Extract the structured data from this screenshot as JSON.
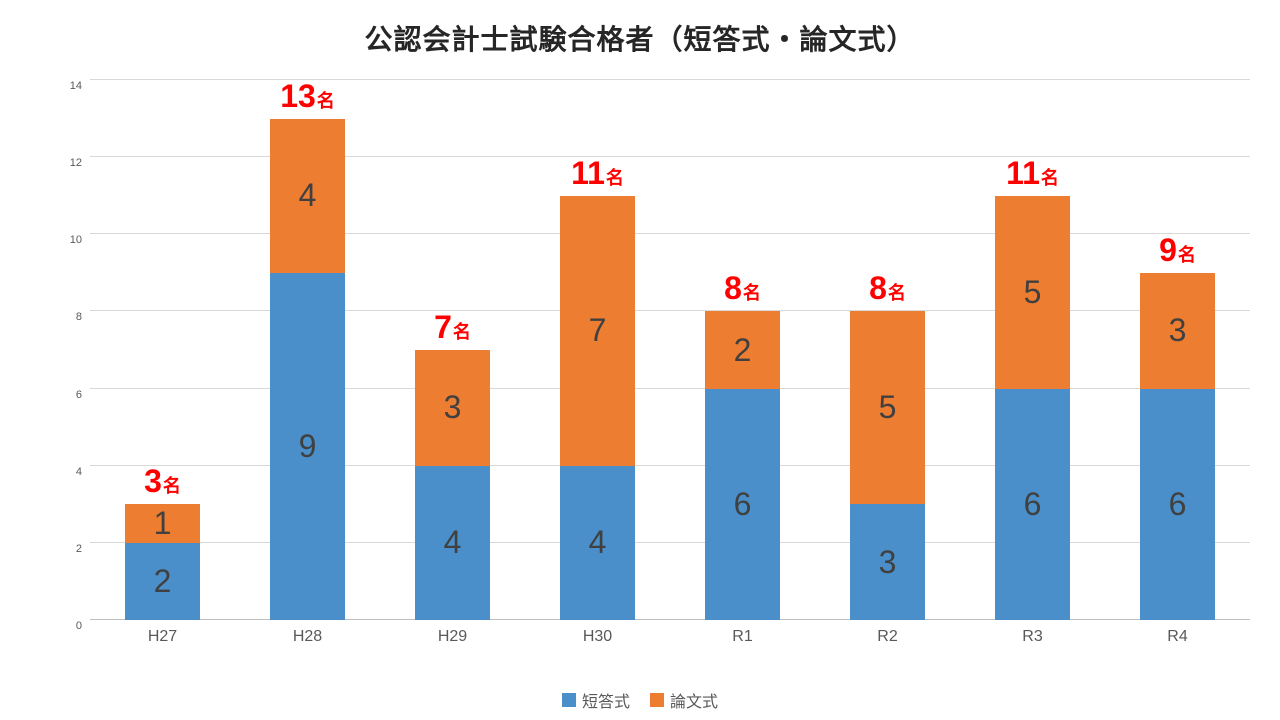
{
  "title": "公認会計士試験合格者（短答式・論文式）",
  "chart": {
    "type": "stacked-bar",
    "background_color": "#ffffff",
    "grid_color": "#d9d9d9",
    "axis_color": "#bfbfbf",
    "tick_font_size": 11,
    "tick_color": "#595959",
    "title_font_size": 28,
    "title_color": "#262626",
    "ylim": [
      0,
      14
    ],
    "ytick_step": 2,
    "yticks": [
      0,
      2,
      4,
      6,
      8,
      10,
      12,
      14
    ],
    "bar_width_ratio": 0.52,
    "categories": [
      "H27",
      "H28",
      "H29",
      "H30",
      "R1",
      "R2",
      "R3",
      "R4"
    ],
    "series": [
      {
        "name": "短答式",
        "color": "#4a8fc9",
        "values": [
          2,
          9,
          4,
          4,
          6,
          3,
          6,
          6
        ]
      },
      {
        "name": "論文式",
        "color": "#ed7d31",
        "values": [
          1,
          4,
          3,
          7,
          2,
          5,
          5,
          3
        ]
      }
    ],
    "totals": [
      3,
      13,
      7,
      11,
      8,
      8,
      11,
      9
    ],
    "total_suffix": "名",
    "total_label_color": "#ff0000",
    "total_label_fontsize_num": 32,
    "total_label_fontsize_suffix": 18,
    "segment_label_color": "#404040",
    "segment_label_fontsize": 32,
    "xlabel_fontsize": 16,
    "xlabel_color": "#595959",
    "legend_fontsize": 16
  }
}
